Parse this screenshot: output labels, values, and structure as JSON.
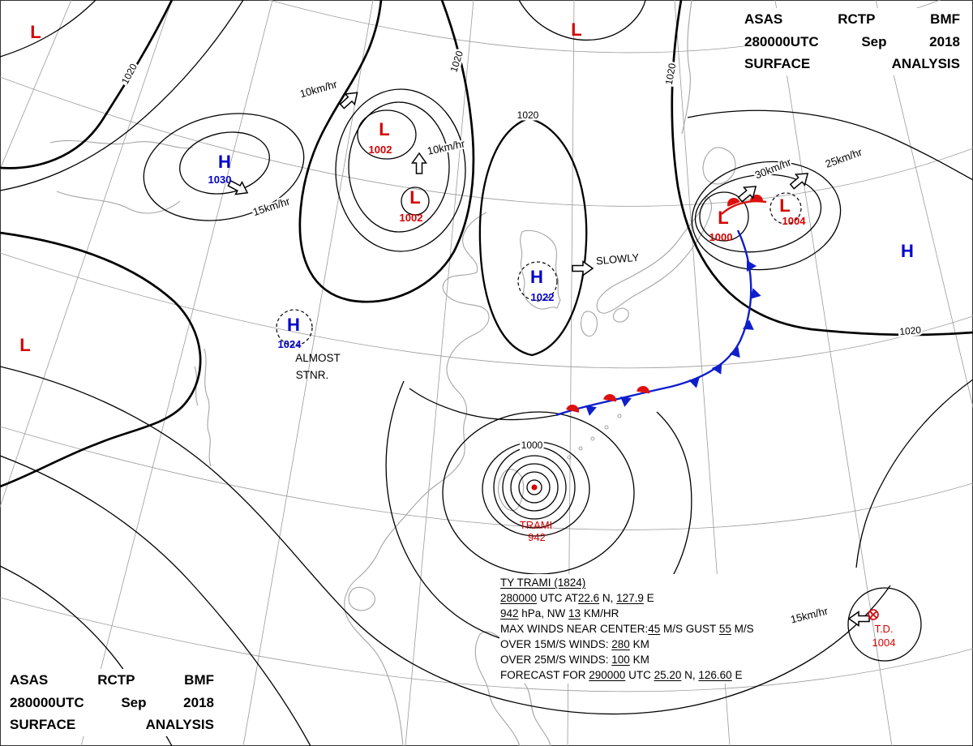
{
  "titles": {
    "top_right": {
      "l1": "ASAS RCTP BMF",
      "l2": "280000UTC Sep 2018",
      "l3": "SURFACE ANALYSIS"
    },
    "bottom_left": {
      "l1": "ASAS RCTP BMF",
      "l2": "280000UTC Sep 2018",
      "l3": "SURFACE ANALYSIS"
    }
  },
  "systems": {
    "l_nw": "L",
    "l_north": "L",
    "l_west": "L",
    "h_nw_letter": "H",
    "h_nw_value": "1030",
    "l_a_letter": "L",
    "l_a_value": "1002",
    "l_b_letter": "L",
    "l_b_value": "1002",
    "h_korea_letter": "H",
    "h_korea_value": "1022",
    "h_china_letter": "H",
    "h_china_value": "1024",
    "h_china_motion_1": "ALMOST",
    "h_china_motion_2": "STNR.",
    "l_ne_letter": "L",
    "l_ne_value": "1000",
    "l_ne2_letter": "L",
    "l_ne2_value": "1004",
    "h_east_letter": "H",
    "trami_name": "TRAMI",
    "trami_value": "942",
    "td_name": "T.D.",
    "td_value": "1004"
  },
  "motion_labels": {
    "m10a": "10km/hr",
    "m10b": "10km/hr",
    "m15w": "15km/hr",
    "slowly": "SLOWLY",
    "m30": "30km/hr",
    "m25": "25km/hr",
    "m15se": "15km/hr"
  },
  "isobar_labels": {
    "a": "1020",
    "b": "1020",
    "c": "1020",
    "d": "1020",
    "e": "1020",
    "f": "1000"
  },
  "typhoon_info": {
    "lines": [
      [
        {
          "t": "TY TRAMI (1824)",
          "u": true
        }
      ],
      [
        {
          "t": "280000",
          "u": true
        },
        {
          "t": " UTC AT"
        },
        {
          "t": "22.6",
          "u": true
        },
        {
          "t": " N, "
        },
        {
          "t": "127.9",
          "u": true
        },
        {
          "t": " E"
        }
      ],
      [
        {
          "t": "942",
          "u": true
        },
        {
          "t": " hPa, NW "
        },
        {
          "t": "13",
          "u": true
        },
        {
          "t": " KM/HR"
        }
      ],
      [
        {
          "t": "MAX WINDS NEAR CENTER:"
        },
        {
          "t": "45",
          "u": true
        },
        {
          "t": " M/S GUST "
        },
        {
          "t": "55",
          "u": true
        },
        {
          "t": " M/S"
        }
      ],
      [
        {
          "t": "OVER 15M/S WINDS: "
        },
        {
          "t": "280",
          "u": true
        },
        {
          "t": " KM"
        }
      ],
      [
        {
          "t": "OVER 25M/S WINDS: "
        },
        {
          "t": "100",
          "u": true
        },
        {
          "t": " KM"
        }
      ],
      [
        {
          "t": "FORECAST FOR "
        },
        {
          "t": "290000",
          "u": true
        },
        {
          "t": " UTC "
        },
        {
          "t": "25.20",
          "u": true
        },
        {
          "t": " N, "
        },
        {
          "t": "126.60",
          "u": true
        },
        {
          "t": " E"
        }
      ]
    ]
  },
  "colors": {
    "low_center": "#d40000",
    "high_center": "#0000c8",
    "cold_front": "#0f1ecc",
    "warm_front": "#dd0f0f",
    "isobar": "#000000",
    "coastline": "#a5a5a5",
    "graticule": "#9a9a9a"
  }
}
